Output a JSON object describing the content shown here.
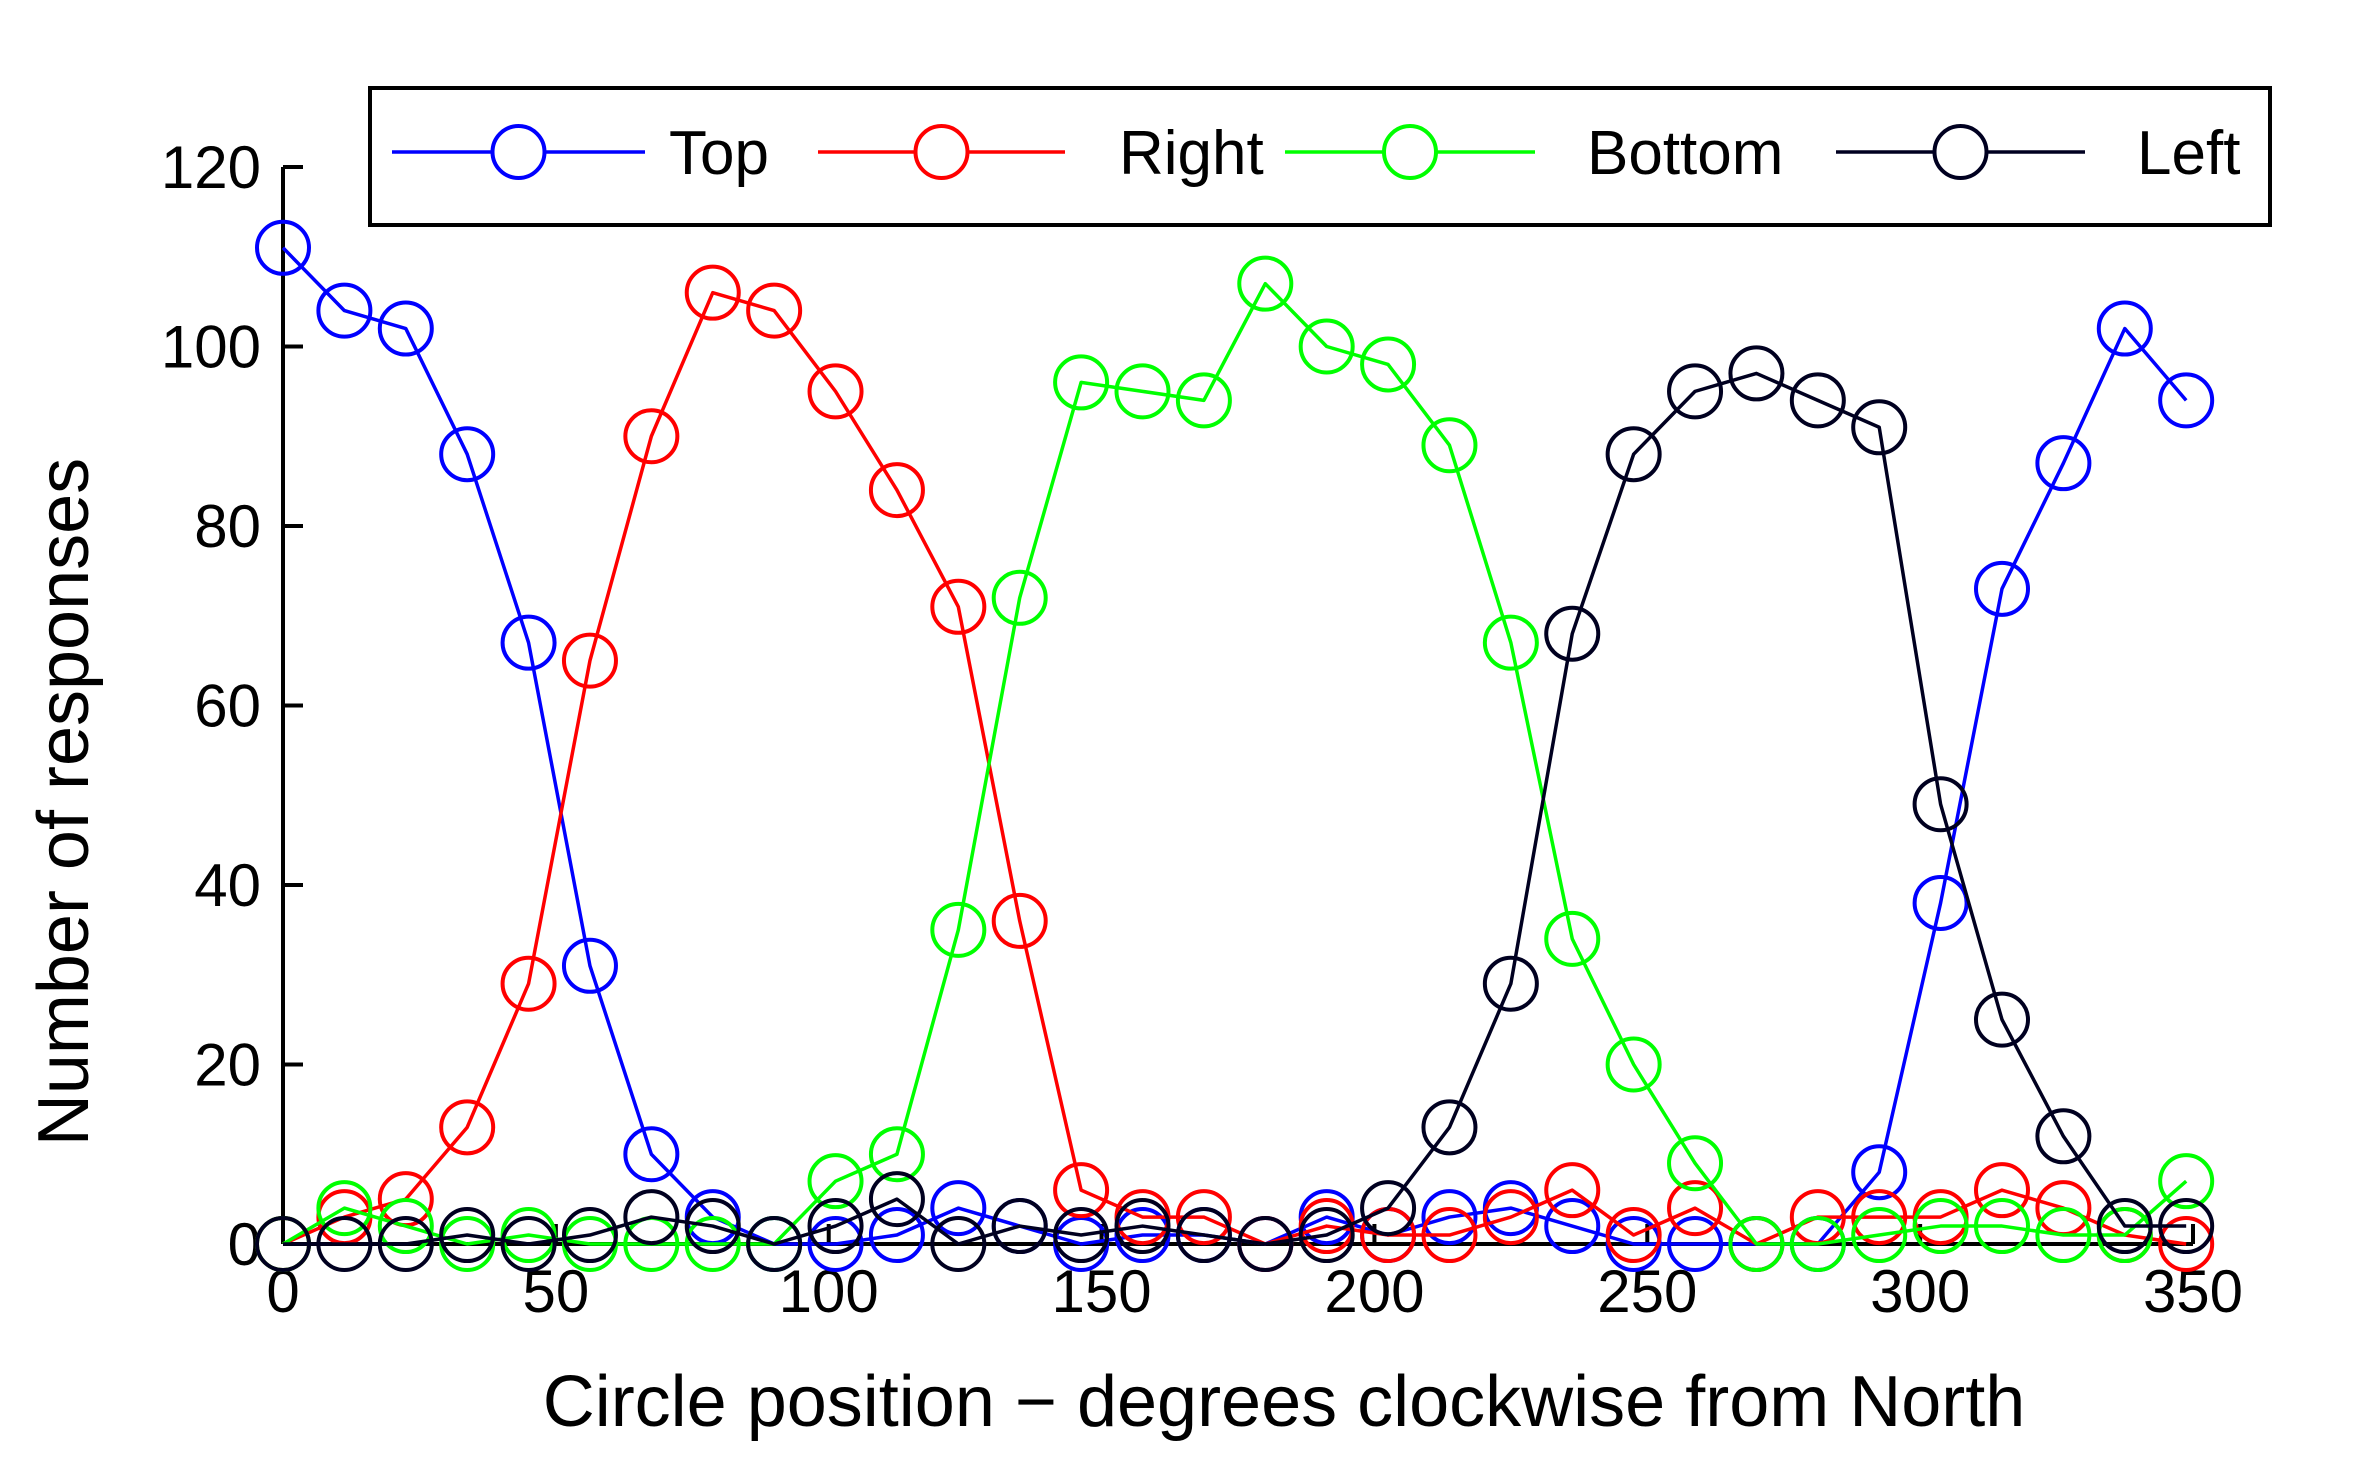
{
  "chart_data": {
    "type": "line",
    "title": "",
    "xlabel": "Circle position − degrees clockwise from North",
    "ylabel": "Number of responses",
    "xlim": [
      0,
      350
    ],
    "ylim": [
      0,
      120
    ],
    "xticks": [
      "0",
      "50",
      "100",
      "150",
      "200",
      "250",
      "300",
      "350"
    ],
    "yticks": [
      "0",
      "20",
      "40",
      "60",
      "80",
      "100",
      "120"
    ],
    "grid": false,
    "legend_position": "top",
    "x": [
      0,
      11.25,
      22.5,
      33.75,
      45,
      56.25,
      67.5,
      78.75,
      90,
      101.25,
      112.5,
      123.75,
      135,
      146.25,
      157.5,
      168.75,
      180,
      191.25,
      202.5,
      213.75,
      225,
      236.25,
      247.5,
      258.75,
      270,
      281.25,
      292.5,
      303.75,
      315,
      326.25,
      337.5,
      348.75
    ],
    "series": [
      {
        "name": "Top",
        "color": "#0000ff",
        "values": [
          111,
          104,
          102,
          88,
          67,
          31,
          10,
          3,
          0,
          0,
          1,
          4,
          2,
          0,
          1,
          1,
          0,
          3,
          1,
          3,
          4,
          2,
          0,
          0,
          0,
          0,
          8,
          38,
          73,
          87,
          102,
          94
        ]
      },
      {
        "name": "Right",
        "color": "#ff0000",
        "values": [
          0,
          3,
          5,
          13,
          29,
          65,
          90,
          106,
          104,
          95,
          84,
          71,
          36,
          6,
          3,
          3,
          0,
          2,
          1,
          1,
          3,
          6,
          1,
          4,
          0,
          3,
          3,
          3,
          6,
          4,
          1,
          0
        ]
      },
      {
        "name": "Bottom",
        "color": "#00ff00",
        "values": [
          0,
          4,
          2,
          0,
          1,
          0,
          0,
          0,
          0,
          7,
          10,
          35,
          72,
          96,
          95,
          94,
          107,
          100,
          98,
          89,
          67,
          34,
          20,
          9,
          0,
          0,
          1,
          2,
          2,
          1,
          1,
          7
        ]
      },
      {
        "name": "Left",
        "color": "#000020",
        "values": [
          0,
          0,
          0,
          1,
          0,
          1,
          3,
          2,
          0,
          2,
          5,
          0,
          2,
          1,
          2,
          1,
          0,
          1,
          4,
          13,
          29,
          68,
          88,
          95,
          97,
          94,
          91,
          49,
          25,
          12,
          2,
          2
        ]
      }
    ]
  }
}
